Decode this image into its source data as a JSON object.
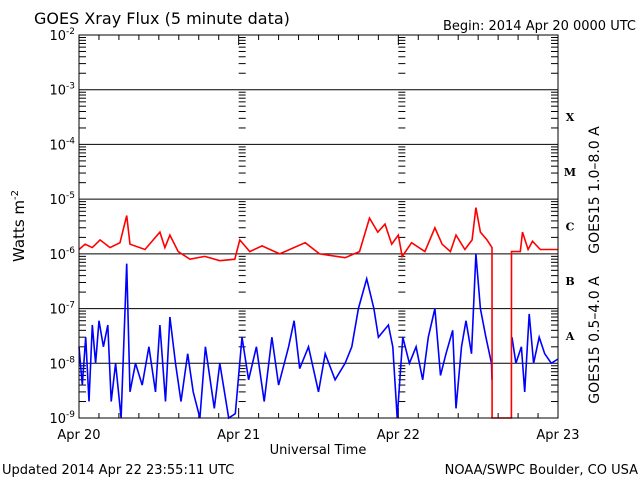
{
  "chart_data": {
    "type": "line",
    "title": "GOES Xray Flux (5 minute data)",
    "subtitle": "Begin:  2014 Apr 20 0000 UTC",
    "xlabel": "Universal Time",
    "ylabel": "Watts m",
    "ylabel_sup": "-2",
    "yscale": "log",
    "ylim": [
      1e-09,
      0.01
    ],
    "xlim": [
      "Apr 20 00:00",
      "Apr 23 00:00"
    ],
    "grid": "horizontal at each decade",
    "x_ticks": [
      "Apr 20",
      "Apr 21",
      "Apr 22",
      "Apr 23"
    ],
    "y_ticks": [
      {
        "base": "10",
        "exp": "-2"
      },
      {
        "base": "10",
        "exp": "-3"
      },
      {
        "base": "10",
        "exp": "-4"
      },
      {
        "base": "10",
        "exp": "-5"
      },
      {
        "base": "10",
        "exp": "-6"
      },
      {
        "base": "10",
        "exp": "-7"
      },
      {
        "base": "10",
        "exp": "-8"
      },
      {
        "base": "10",
        "exp": "-9"
      }
    ],
    "flare_classes": [
      "X",
      "M",
      "C",
      "B",
      "A"
    ],
    "series": [
      {
        "name": "GOES15 1.0–8.0 A",
        "color": "#ff0000",
        "points": [
          [
            "Apr 20 00:00",
            1.2e-06
          ],
          [
            "Apr 20 00:55",
            1.5e-06
          ],
          [
            "Apr 20 02:00",
            1.3e-06
          ],
          [
            "Apr 20 03:10",
            1.8e-06
          ],
          [
            "Apr 20 04:40",
            1.3e-06
          ],
          [
            "Apr 20 06:10",
            1.6e-06
          ],
          [
            "Apr 20 07:10",
            5e-06
          ],
          [
            "Apr 20 07:40",
            1.5e-06
          ],
          [
            "Apr 20 09:55",
            1.2e-06
          ],
          [
            "Apr 20 12:10",
            2.5e-06
          ],
          [
            "Apr 20 12:55",
            1.3e-06
          ],
          [
            "Apr 20 13:40",
            2.2e-06
          ],
          [
            "Apr 20 14:55",
            1.1e-06
          ],
          [
            "Apr 20 16:40",
            8e-07
          ],
          [
            "Apr 20 18:55",
            9e-07
          ],
          [
            "Apr 20 21:10",
            7.5e-07
          ],
          [
            "Apr 20 23:25",
            8e-07
          ],
          [
            "Apr 21 00:10",
            1.8e-06
          ],
          [
            "Apr 21 01:40",
            1.1e-06
          ],
          [
            "Apr 21 03:30",
            1.4e-06
          ],
          [
            "Apr 21 06:10",
            1e-06
          ],
          [
            "Apr 21 10:00",
            1.6e-06
          ],
          [
            "Apr 21 12:10",
            1e-06
          ],
          [
            "Apr 21 16:00",
            8.5e-07
          ],
          [
            "Apr 21 18:10",
            1.1e-06
          ],
          [
            "Apr 21 19:40",
            4.5e-06
          ],
          [
            "Apr 21 20:55",
            2.5e-06
          ],
          [
            "Apr 21 22:00",
            3.5e-06
          ],
          [
            "Apr 21 23:00",
            1.5e-06
          ],
          [
            "Apr 22 00:00",
            2.2e-06
          ],
          [
            "Apr 22 00:35",
            9e-07
          ],
          [
            "Apr 22 02:00",
            1.6e-06
          ],
          [
            "Apr 22 04:00",
            1.1e-06
          ],
          [
            "Apr 22 05:30",
            3e-06
          ],
          [
            "Apr 22 06:35",
            1.5e-06
          ],
          [
            "Apr 22 07:50",
            1.1e-06
          ],
          [
            "Apr 22 08:40",
            2.2e-06
          ],
          [
            "Apr 22 10:00",
            1.2e-06
          ],
          [
            "Apr 22 11:05",
            1.8e-06
          ],
          [
            "Apr 22 11:40",
            7e-06
          ],
          [
            "Apr 22 12:20",
            2.5e-06
          ],
          [
            "Apr 22 13:20",
            1.8e-06
          ],
          [
            "Apr 22 14:05",
            1.3e-06
          ],
          [
            "Apr 22 14:06",
            1e-09
          ],
          [
            "Apr 22 17:00",
            1e-09
          ],
          [
            "Apr 22 17:01",
            1.1e-06
          ],
          [
            "Apr 22 18:20",
            1.1e-06
          ],
          [
            "Apr 22 18:40",
            2.5e-06
          ],
          [
            "Apr 22 19:30",
            1.2e-06
          ],
          [
            "Apr 22 20:10",
            1.7e-06
          ],
          [
            "Apr 22 21:20",
            1.2e-06
          ],
          [
            "Apr 23 00:00",
            1.2e-06
          ]
        ]
      },
      {
        "name": "GOES15 0.5–4.0 A",
        "color": "#0000ff",
        "points": [
          [
            "Apr 20 00:00",
            2e-08
          ],
          [
            "Apr 20 00:30",
            4e-09
          ],
          [
            "Apr 20 01:00",
            3e-08
          ],
          [
            "Apr 20 01:30",
            2e-09
          ],
          [
            "Apr 20 02:00",
            5e-08
          ],
          [
            "Apr 20 02:30",
            1e-08
          ],
          [
            "Apr 20 03:00",
            6e-08
          ],
          [
            "Apr 20 03:40",
            2e-08
          ],
          [
            "Apr 20 04:20",
            5e-08
          ],
          [
            "Apr 20 04:50",
            2e-09
          ],
          [
            "Apr 20 05:30",
            1e-08
          ],
          [
            "Apr 20 06:20",
            1e-09
          ],
          [
            "Apr 20 07:10",
            6.6e-07
          ],
          [
            "Apr 20 07:40",
            3e-09
          ],
          [
            "Apr 20 08:30",
            1e-08
          ],
          [
            "Apr 20 09:30",
            4e-09
          ],
          [
            "Apr 20 10:30",
            2e-08
          ],
          [
            "Apr 20 11:30",
            3e-09
          ],
          [
            "Apr 20 12:10",
            5e-08
          ],
          [
            "Apr 20 13:00",
            2e-09
          ],
          [
            "Apr 20 13:40",
            7e-08
          ],
          [
            "Apr 20 14:30",
            1e-08
          ],
          [
            "Apr 20 15:20",
            2e-09
          ],
          [
            "Apr 20 16:20",
            1.5e-08
          ],
          [
            "Apr 20 17:10",
            3e-09
          ],
          [
            "Apr 20 18:10",
            1e-09
          ],
          [
            "Apr 20 19:00",
            2e-08
          ],
          [
            "Apr 20 20:20",
            1.5e-09
          ],
          [
            "Apr 20 21:10",
            1e-08
          ],
          [
            "Apr 20 22:30",
            1e-09
          ],
          [
            "Apr 20 23:30",
            1.2e-09
          ],
          [
            "Apr 21 00:30",
            3e-08
          ],
          [
            "Apr 21 01:30",
            5e-09
          ],
          [
            "Apr 21 02:40",
            2e-08
          ],
          [
            "Apr 21 03:50",
            2e-09
          ],
          [
            "Apr 21 05:00",
            3e-08
          ],
          [
            "Apr 21 06:00",
            4e-09
          ],
          [
            "Apr 21 07:30",
            2e-08
          ],
          [
            "Apr 21 08:20",
            6e-08
          ],
          [
            "Apr 21 09:10",
            8e-09
          ],
          [
            "Apr 21 10:30",
            2e-08
          ],
          [
            "Apr 21 12:00",
            3e-09
          ],
          [
            "Apr 21 13:00",
            1.5e-08
          ],
          [
            "Apr 21 14:30",
            5e-09
          ],
          [
            "Apr 21 16:00",
            1e-08
          ],
          [
            "Apr 21 17:00",
            2e-08
          ],
          [
            "Apr 21 18:00",
            1e-07
          ],
          [
            "Apr 21 19:15",
            3.5e-07
          ],
          [
            "Apr 21 20:20",
            1e-07
          ],
          [
            "Apr 21 21:00",
            3e-08
          ],
          [
            "Apr 21 22:30",
            5e-08
          ],
          [
            "Apr 21 23:10",
            2e-08
          ],
          [
            "Apr 21 23:50",
            1e-09
          ],
          [
            "Apr 22 00:40",
            3e-08
          ],
          [
            "Apr 22 01:40",
            1e-08
          ],
          [
            "Apr 22 02:40",
            2e-08
          ],
          [
            "Apr 22 03:40",
            5e-09
          ],
          [
            "Apr 22 04:30",
            3e-08
          ],
          [
            "Apr 22 05:30",
            1e-07
          ],
          [
            "Apr 22 06:20",
            6e-09
          ],
          [
            "Apr 22 07:10",
            1.5e-08
          ],
          [
            "Apr 22 08:10",
            4e-08
          ],
          [
            "Apr 22 08:40",
            1.5e-09
          ],
          [
            "Apr 22 09:30",
            2e-08
          ],
          [
            "Apr 22 10:10",
            6e-08
          ],
          [
            "Apr 22 11:00",
            1.5e-08
          ],
          [
            "Apr 22 11:40",
            1e-06
          ],
          [
            "Apr 22 12:20",
            1e-07
          ],
          [
            "Apr 22 13:10",
            3e-08
          ],
          [
            "Apr 22 14:00",
            1e-08
          ],
          [
            "Apr 22 14:05",
            5e-09
          ],
          [
            "Apr 22 15:30",
            null
          ],
          [
            "Apr 22 17:05",
            3e-08
          ],
          [
            "Apr 22 17:40",
            1e-08
          ],
          [
            "Apr 22 18:30",
            2e-08
          ],
          [
            "Apr 22 19:00",
            3e-09
          ],
          [
            "Apr 22 19:40",
            8e-08
          ],
          [
            "Apr 22 20:20",
            1e-08
          ],
          [
            "Apr 22 21:10",
            3e-08
          ],
          [
            "Apr 22 22:00",
            1.5e-08
          ],
          [
            "Apr 22 23:00",
            1e-08
          ],
          [
            "Apr 23 00:00",
            1.2e-08
          ]
        ]
      }
    ]
  },
  "footer": {
    "updated": "Updated 2014 Apr 22 23:55:11 UTC",
    "source": "NOAA/SWPC Boulder, CO USA"
  }
}
